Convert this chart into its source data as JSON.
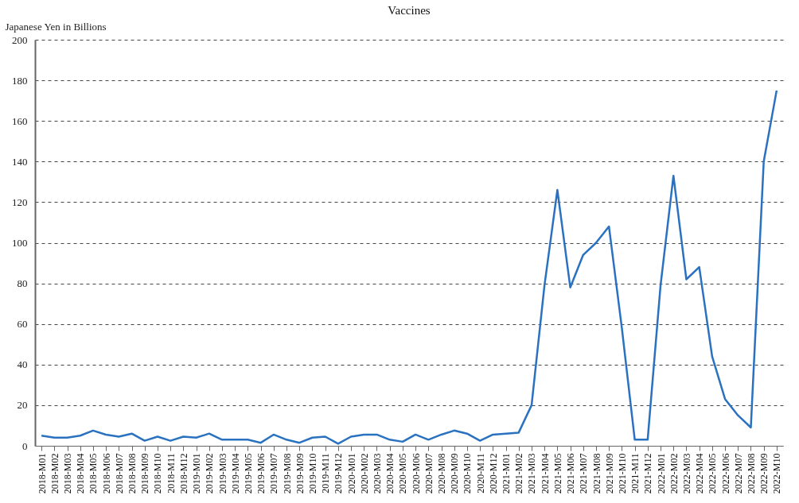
{
  "chart_data": {
    "type": "line",
    "title": "Vaccines",
    "ylabel": "Japanese Yen in Billions",
    "categories": [
      "2018-M01",
      "2018-M02",
      "2018-M03",
      "2018-M04",
      "2018-M05",
      "2018-M06",
      "2018-M07",
      "2018-M08",
      "2018-M09",
      "2018-M10",
      "2018-M11",
      "2018-M12",
      "2019-M01",
      "2019-M02",
      "2019-M03",
      "2019-M04",
      "2019-M05",
      "2019-M06",
      "2019-M07",
      "2019-M08",
      "2019-M09",
      "2019-M10",
      "2019-M11",
      "2019-M12",
      "2020-M01",
      "2020-M02",
      "2020-M03",
      "2020-M04",
      "2020-M05",
      "2020-M06",
      "2020-M07",
      "2020-M08",
      "2020-M09",
      "2020-M10",
      "2020-M11",
      "2020-M12",
      "2021-M01",
      "2021-M02",
      "2021-M03",
      "2021-M04",
      "2021-M05",
      "2021-M06",
      "2021-M07",
      "2021-M08",
      "2021-M09",
      "2021-M10",
      "2021-M11",
      "2021-M12",
      "2022-M01",
      "2022-M02",
      "2022-M03",
      "2022-M04",
      "2022-M05",
      "2022-M06",
      "2022-M07",
      "2022-M08",
      "2022-M09",
      "2022-M10"
    ],
    "series": [
      {
        "color": "#2a72c0",
        "values": [
          5,
          4,
          4,
          5,
          7.5,
          5.5,
          4.5,
          6,
          2.5,
          4.5,
          2.5,
          4.5,
          4,
          6,
          3,
          3,
          3,
          1.5,
          5.5,
          3,
          1.5,
          4,
          4.5,
          1,
          4.5,
          5.5,
          5.5,
          3,
          2,
          5.5,
          3,
          5.5,
          7.5,
          6,
          2.5,
          5.5,
          6,
          6.5,
          20,
          79,
          126,
          78,
          94,
          100,
          108,
          58,
          3,
          3,
          79,
          133,
          82,
          88,
          44,
          23,
          15,
          9,
          140,
          175
        ]
      }
    ],
    "ylim": [
      0,
      200
    ],
    "yticks": [
      0,
      20,
      40,
      60,
      80,
      100,
      120,
      140,
      160,
      180,
      200
    ],
    "grid": "y",
    "legend": false,
    "line_style": "solid",
    "marker": "none"
  }
}
